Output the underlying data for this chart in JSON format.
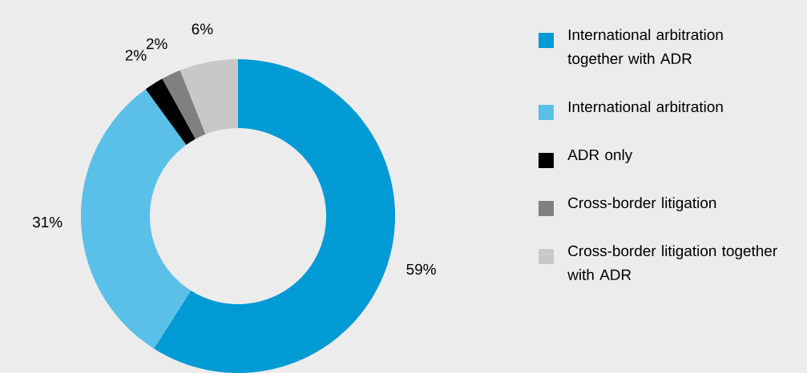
{
  "chart_data": {
    "type": "donut",
    "categories": [
      "International arbitration together with ADR",
      "International arbitration",
      "ADR only",
      "Cross-border litigation",
      "Cross-border litigation together with ADR"
    ],
    "values": [
      59,
      31,
      2,
      2,
      6
    ],
    "colors": [
      "#009ad5",
      "#5bc0e8",
      "#000000",
      "#808080",
      "#c8c8c8"
    ],
    "value_labels": [
      "59%",
      "31%",
      "2%",
      "2%",
      "6%"
    ],
    "legend": "right"
  }
}
